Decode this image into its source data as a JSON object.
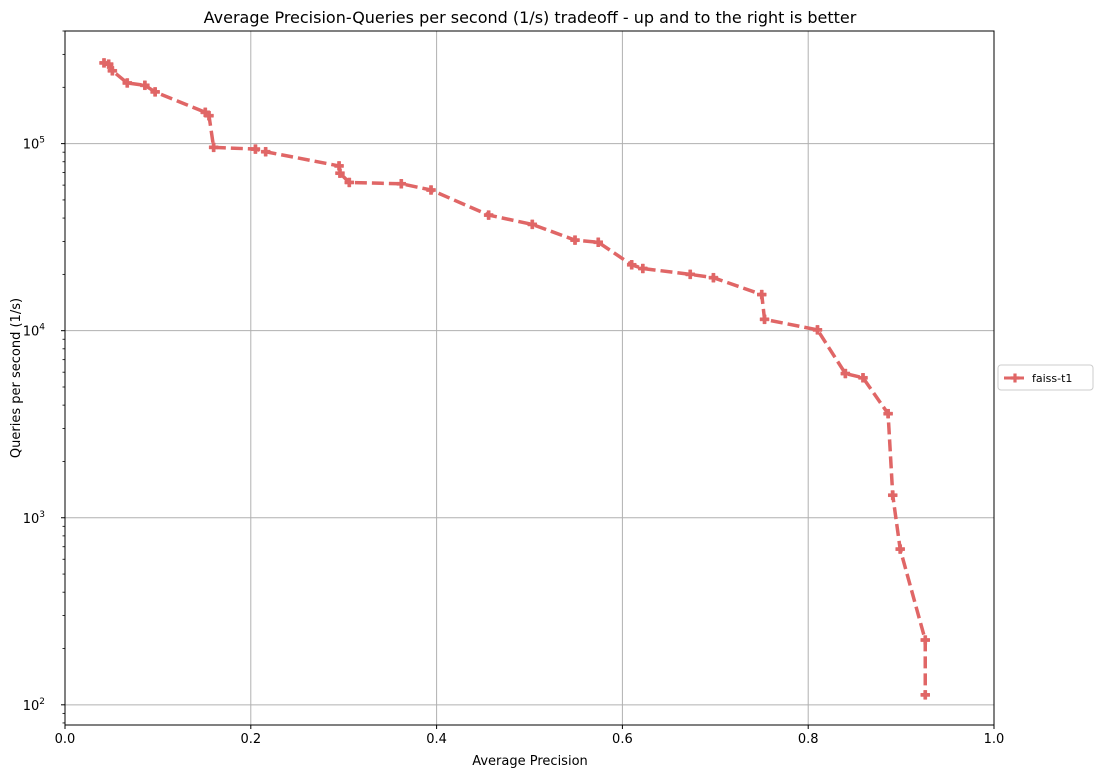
{
  "chart_data": {
    "type": "line",
    "title": "Average Precision-Queries per second (1/s) tradeoff - up and to the right is better",
    "xlabel": "Average Precision",
    "ylabel": "Queries per second (1/s)",
    "xlim": [
      0,
      1
    ],
    "ylim": [
      78,
      400000
    ],
    "yscale": "log",
    "grid": true,
    "legend_position": "right",
    "x_ticks": [
      "0.0",
      "0.2",
      "0.4",
      "0.6",
      "0.8",
      "1.0"
    ],
    "y_ticks": [
      {
        "base": "10",
        "exp": "2"
      },
      {
        "base": "10",
        "exp": "3"
      },
      {
        "base": "10",
        "exp": "4"
      },
      {
        "base": "10",
        "exp": "5"
      }
    ],
    "series": [
      {
        "name": "faiss-t1",
        "color": "#e06666",
        "line_style": "dashed",
        "marker": "plus",
        "points": [
          [
            0.042,
            270000
          ],
          [
            0.047,
            266000
          ],
          [
            0.051,
            245000
          ],
          [
            0.067,
            211000
          ],
          [
            0.086,
            205000
          ],
          [
            0.097,
            189000
          ],
          [
            0.151,
            147000
          ],
          [
            0.155,
            141000
          ],
          [
            0.16,
            95500
          ],
          [
            0.205,
            93500
          ],
          [
            0.216,
            90500
          ],
          [
            0.295,
            76000
          ],
          [
            0.296,
            69500
          ],
          [
            0.306,
            62000
          ],
          [
            0.362,
            61000
          ],
          [
            0.394,
            56500
          ],
          [
            0.456,
            41500
          ],
          [
            0.503,
            37000
          ],
          [
            0.549,
            30500
          ],
          [
            0.574,
            29700
          ],
          [
            0.61,
            22500
          ],
          [
            0.622,
            21500
          ],
          [
            0.673,
            20000
          ],
          [
            0.698,
            19200
          ],
          [
            0.75,
            15600
          ],
          [
            0.753,
            11500
          ],
          [
            0.81,
            10100
          ],
          [
            0.84,
            5900
          ],
          [
            0.859,
            5600
          ],
          [
            0.886,
            3600
          ],
          [
            0.891,
            1320
          ],
          [
            0.899,
            680
          ],
          [
            0.926,
            222
          ],
          [
            0.926,
            113
          ]
        ]
      }
    ]
  }
}
